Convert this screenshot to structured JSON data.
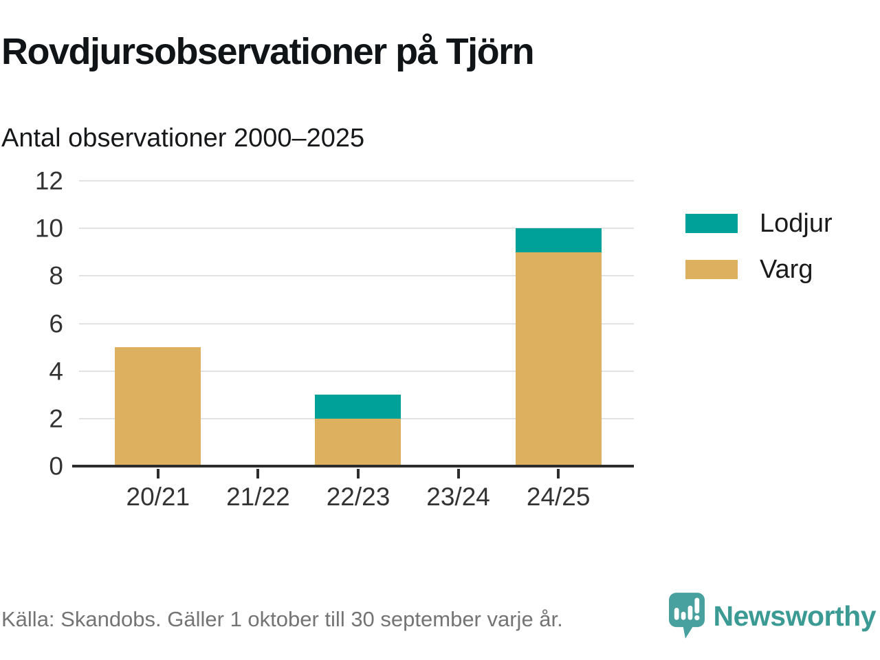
{
  "header": {
    "title": "Rovdjursobservationer på Tjörn",
    "subtitle": "Antal observationer 2000–2025"
  },
  "chart_data": {
    "type": "bar",
    "stacked": true,
    "title": "Rovdjursobservationer på Tjörn",
    "subtitle": "Antal observationer 2000–2025",
    "categories": [
      "20/21",
      "21/22",
      "22/23",
      "23/24",
      "24/25"
    ],
    "series": [
      {
        "name": "Lodjur",
        "color": "#00a199",
        "values": [
          0,
          0,
          1,
          0,
          1
        ]
      },
      {
        "name": "Varg",
        "color": "#dcb05f",
        "values": [
          5,
          0,
          2,
          0,
          9
        ]
      }
    ],
    "xlabel": "",
    "ylabel": "",
    "ylim": [
      0,
      12
    ],
    "yticks": [
      0,
      2,
      4,
      6,
      8,
      10,
      12
    ],
    "grid": true,
    "legend_position": "right"
  },
  "footer": {
    "source": "Källa: Skandobs. Gäller 1 oktober till 30 september varje år.",
    "brand_name": "Newsworthy"
  },
  "colors": {
    "lodjur": "#00a199",
    "varg": "#dcb05f",
    "axis": "#2d2d2d",
    "gridline": "#e2e2e2",
    "brand_text": "#3b9a93",
    "logo_bubble": "#48a19e",
    "footer_text": "#747474"
  }
}
